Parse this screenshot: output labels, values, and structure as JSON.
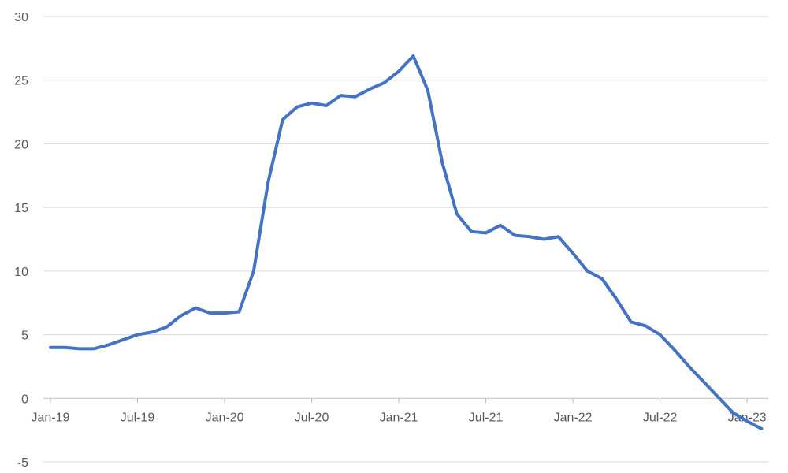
{
  "chart_data": {
    "type": "line",
    "title": "",
    "xlabel": "",
    "ylabel": "",
    "ylim": [
      -5,
      30
    ],
    "yticks": [
      -5,
      0,
      5,
      10,
      15,
      20,
      25,
      30
    ],
    "grid": true,
    "legend": "none",
    "colors": {
      "series": "#4472c4",
      "grid": "#d9d9d9",
      "axis": "#bfbfbf",
      "text": "#595959"
    },
    "x": [
      "Jan-19",
      "Feb-19",
      "Mar-19",
      "Apr-19",
      "May-19",
      "Jun-19",
      "Jul-19",
      "Aug-19",
      "Sep-19",
      "Oct-19",
      "Nov-19",
      "Dec-19",
      "Jan-20",
      "Feb-20",
      "Mar-20",
      "Apr-20",
      "May-20",
      "Jun-20",
      "Jul-20",
      "Aug-20",
      "Sep-20",
      "Oct-20",
      "Nov-20",
      "Dec-20",
      "Jan-21",
      "Feb-21",
      "Mar-21",
      "Apr-21",
      "May-21",
      "Jun-21",
      "Jul-21",
      "Aug-21",
      "Sep-21",
      "Oct-21",
      "Nov-21",
      "Dec-21",
      "Jan-22",
      "Feb-22",
      "Mar-22",
      "Apr-22",
      "May-22",
      "Jun-22",
      "Jul-22",
      "Aug-22",
      "Sep-22",
      "Oct-22",
      "Nov-22",
      "Dec-22",
      "Jan-23",
      "Feb-23"
    ],
    "x_tick_labels": [
      "Jan-19",
      "Jul-19",
      "Jan-20",
      "Jul-20",
      "Jan-21",
      "Jul-21",
      "Jan-22",
      "Jul-22",
      "Jan-23"
    ],
    "series": [
      {
        "values": [
          4.0,
          4.0,
          3.9,
          3.9,
          4.2,
          4.6,
          5.0,
          5.2,
          5.6,
          6.5,
          7.1,
          6.7,
          6.7,
          6.8,
          10.0,
          17.0,
          21.9,
          22.9,
          23.2,
          23.0,
          23.8,
          23.7,
          24.3,
          24.8,
          25.7,
          26.9,
          24.2,
          18.5,
          14.5,
          13.1,
          13.0,
          13.6,
          12.8,
          12.7,
          12.5,
          12.7,
          11.4,
          10.0,
          9.4,
          7.8,
          6.0,
          5.7,
          5.0,
          3.8,
          2.5,
          1.3,
          0.1,
          -1.1,
          -1.8,
          -2.4
        ]
      }
    ]
  }
}
